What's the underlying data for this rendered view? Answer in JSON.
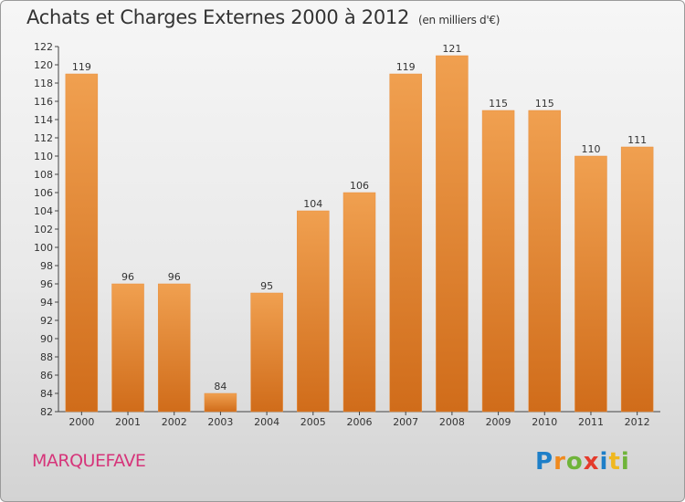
{
  "header": {
    "title": "Achats et Charges Externes 2000 à 2012",
    "unit": "(en milliers d'€)"
  },
  "footer": {
    "city": "MARQUEFAVE",
    "logo_letters": [
      "P",
      "r",
      "o",
      "x",
      "i",
      "t",
      "i"
    ]
  },
  "colors": {
    "bar": "#f0a050",
    "bar_dark": "#d06c1a",
    "city": "#d6357a",
    "logo": [
      "#1e7fc8",
      "#f08a1e",
      "#6fb43a",
      "#e43b2c",
      "#1e7fc8",
      "#f0b820",
      "#6fb43a"
    ]
  },
  "chart_data": {
    "type": "bar",
    "categories": [
      "2000",
      "2001",
      "2002",
      "2003",
      "2004",
      "2005",
      "2006",
      "2007",
      "2008",
      "2009",
      "2010",
      "2011",
      "2012"
    ],
    "values": [
      119,
      96,
      96,
      84,
      95,
      104,
      106,
      119,
      121,
      115,
      115,
      110,
      111
    ],
    "data_labels": [
      "119",
      "96",
      "96",
      "84",
      "95",
      "104",
      "106",
      "119",
      "121",
      "115",
      "115",
      "110",
      "111"
    ],
    "ylim": [
      82,
      122
    ],
    "yticks": [
      "82",
      "84",
      "86",
      "88",
      "90",
      "92",
      "94",
      "96",
      "98",
      "100",
      "102",
      "104",
      "106",
      "108",
      "110",
      "112",
      "114",
      "116",
      "118",
      "120",
      "122"
    ],
    "grid": false
  }
}
